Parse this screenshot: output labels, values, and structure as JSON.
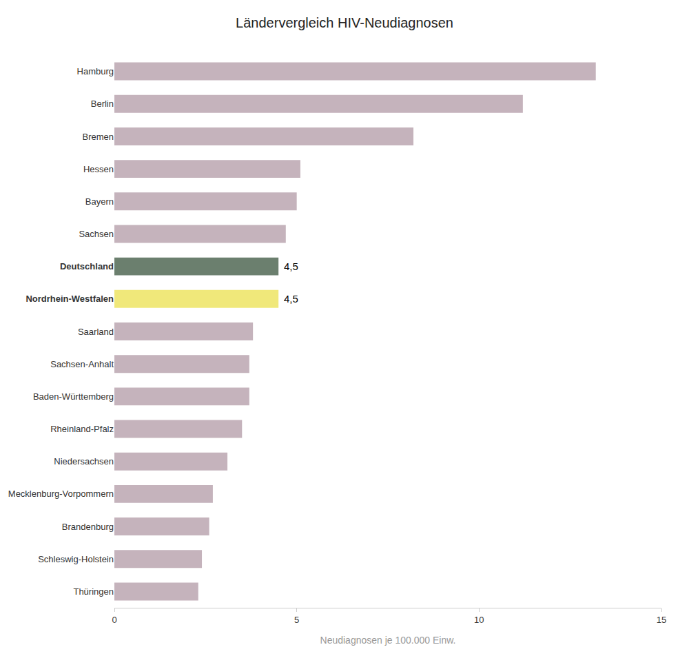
{
  "chart_data": {
    "type": "bar",
    "orientation": "horizontal",
    "title": "Ländervergleich HIV-Neudiagnosen",
    "xlabel": "Neudiagnosen je 100.000 Einw.",
    "categories": [
      "Hamburg",
      "Berlin",
      "Bremen",
      "Hessen",
      "Bayern",
      "Sachsen",
      "Deutschland",
      "Nordrhein-Westfalen",
      "Saarland",
      "Sachsen-Anhalt",
      "Baden-Württemberg",
      "Rheinland-Pfalz",
      "Niedersachsen",
      "Mecklenburg-Vorpommern",
      "Brandenburg",
      "Schleswig-Holstein",
      "Thüringen"
    ],
    "values": [
      13.2,
      11.2,
      8.2,
      5.1,
      5.0,
      4.7,
      4.5,
      4.5,
      3.8,
      3.7,
      3.7,
      3.5,
      3.1,
      2.7,
      2.6,
      2.4,
      2.3
    ],
    "colors": [
      "#c5b3bc",
      "#c5b3bc",
      "#c5b3bc",
      "#c5b3bc",
      "#c5b3bc",
      "#c5b3bc",
      "#6b7f6e",
      "#f0e87a",
      "#c5b3bc",
      "#c5b3bc",
      "#c5b3bc",
      "#c5b3bc",
      "#c5b3bc",
      "#c5b3bc",
      "#c5b3bc",
      "#c5b3bc",
      "#c5b3bc"
    ],
    "annotations": [
      {
        "text": "4,5",
        "x": 4.5,
        "y": "Deutschland"
      },
      {
        "text": "4,5",
        "x": 4.5,
        "y": "Nordrhein-Westfalen"
      }
    ],
    "xlim": [
      0,
      15
    ],
    "xticks": [
      0,
      5,
      10,
      15
    ],
    "grid": false
  }
}
